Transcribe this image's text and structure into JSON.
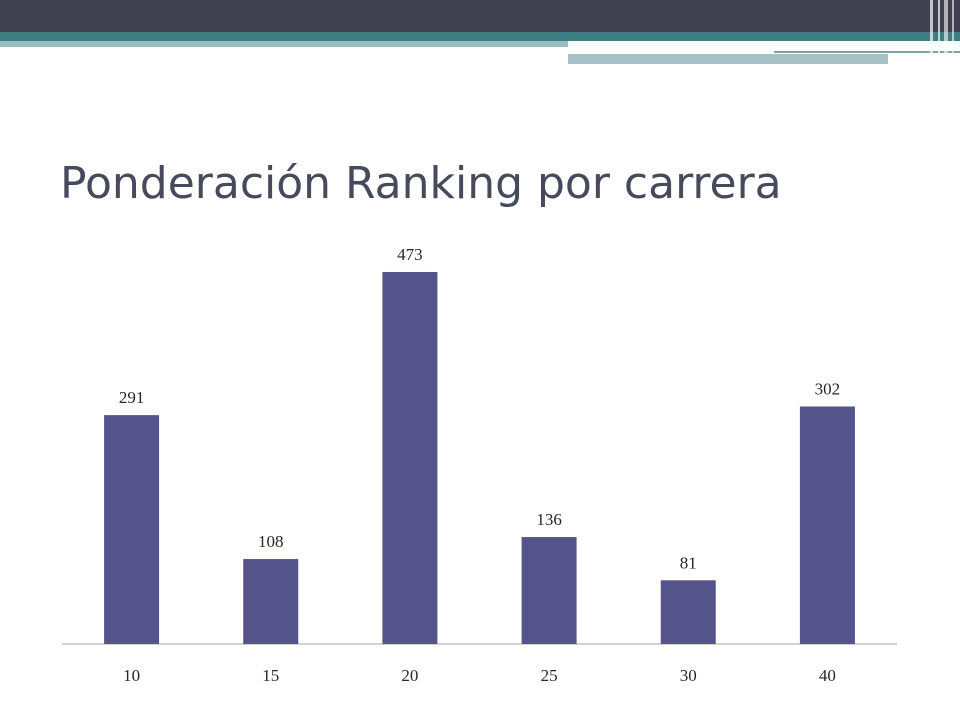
{
  "chart_data": {
    "type": "bar",
    "title": "Ponderación Ranking por carrera",
    "categories": [
      "10",
      "15",
      "20",
      "25",
      "30",
      "40"
    ],
    "values": [
      291,
      108,
      473,
      136,
      81,
      302
    ],
    "color": "#55548a"
  }
}
